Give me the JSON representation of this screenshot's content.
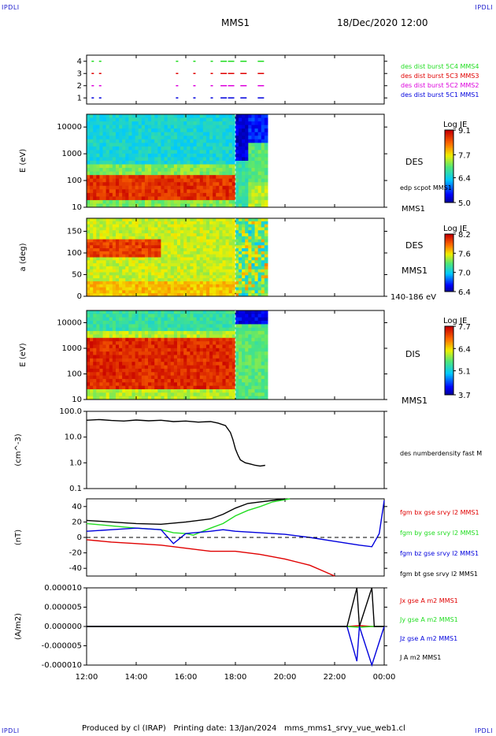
{
  "header": {
    "corner_label": "IPDLI",
    "satellite": "MMS1",
    "datetime": "18/Dec/2020 12:00"
  },
  "footer": {
    "produced_by": "Produced by cl (IRAP)",
    "printing_date": "Printing date: 13/Jan/2024",
    "script_name": "mms_mms1_srvy_vue_web1.cl"
  },
  "colors": {
    "red": "#e00000",
    "green": "#22dd22",
    "blue": "#0000dd",
    "magenta": "#dd00dd",
    "black": "#000000",
    "label_blue": "#1a1acc"
  },
  "time_axis": {
    "start_hours": 12,
    "end_hours": 24,
    "tick_labels": [
      "12:00",
      "14:00",
      "16:00",
      "18:00",
      "20:00",
      "22:00",
      "00:00"
    ],
    "dashed_marker_hours": 18
  },
  "chart_data": [
    {
      "type": "scatter",
      "panel": "burst",
      "y_ticks": [
        "4",
        "3",
        "2",
        "1"
      ],
      "ylim": [
        0.5,
        4.5
      ],
      "series": [
        {
          "name": "des dist burst 5C1 MMS1",
          "level": 1,
          "color": "#0000dd",
          "times": [
            12.2,
            12.5,
            15.6,
            16.3,
            17.0,
            17.4,
            17.7,
            18.2,
            18.9
          ]
        },
        {
          "name": "des dist burst 5C2 MMS2",
          "level": 2,
          "color": "#dd00dd",
          "times": [
            12.2,
            12.5,
            15.6,
            16.3,
            17.0,
            17.4,
            17.7,
            18.2,
            18.9
          ]
        },
        {
          "name": "des dist burst 5C3 MMS3",
          "level": 3,
          "color": "#e00000",
          "times": [
            12.2,
            12.5,
            15.6,
            16.3,
            17.0,
            17.4,
            17.7,
            18.2,
            18.9
          ]
        },
        {
          "name": "des dist burst 5C4 MMS4",
          "level": 4,
          "color": "#22dd22",
          "times": [
            12.2,
            12.5,
            15.6,
            16.3,
            17.0,
            17.4,
            17.7,
            18.2,
            18.9
          ]
        }
      ]
    },
    {
      "type": "heatmap",
      "panel": "des_energy",
      "ylabel": "E (eV)",
      "yscale": "log",
      "ylim": [
        10,
        30000
      ],
      "y_ticks": [
        "10000",
        "1000",
        "100",
        "10"
      ],
      "x_end_hours": 19.3,
      "side_labels": [
        "DES",
        "edp scpot MMS1",
        "MMS1"
      ],
      "colorbar": {
        "title": "Log JE",
        "ticks": [
          "9.1",
          "7.7",
          "6.4",
          "5.0"
        ],
        "min": 5.0,
        "max": 9.1
      }
    },
    {
      "type": "heatmap",
      "panel": "des_pitch",
      "ylabel": "a (deg)",
      "ylim": [
        0,
        180
      ],
      "y_ticks": [
        "150",
        "100",
        "50",
        "0"
      ],
      "x_end_hours": 19.3,
      "side_labels": [
        "DES",
        "MMS1",
        "140-186 eV"
      ],
      "colorbar": {
        "title": "Log JE",
        "ticks": [
          "8.2",
          "7.6",
          "7.0",
          "6.4"
        ],
        "min": 6.4,
        "max": 8.2
      }
    },
    {
      "type": "heatmap",
      "panel": "dis_energy",
      "ylabel": "E (eV)",
      "yscale": "log",
      "ylim": [
        10,
        30000
      ],
      "y_ticks": [
        "10000",
        "1000",
        "100",
        "10"
      ],
      "x_end_hours": 19.3,
      "side_labels": [
        "DIS",
        "MMS1"
      ],
      "colorbar": {
        "title": "Log JE",
        "ticks": [
          "7.7",
          "6.4",
          "5.1",
          "3.7"
        ],
        "min": 3.7,
        "max": 7.7
      }
    },
    {
      "type": "line",
      "panel": "density",
      "ylabel": "(cm^-3)",
      "yscale": "log",
      "ylim": [
        0.1,
        100
      ],
      "y_ticks": [
        "100.0",
        "10.0",
        "1.0",
        "0.1"
      ],
      "series": [
        {
          "name": "des numberdensity fast M",
          "color": "#000000",
          "x": [
            12.0,
            12.5,
            13.0,
            13.5,
            14.0,
            14.5,
            15.0,
            15.5,
            16.0,
            16.5,
            17.0,
            17.3,
            17.6,
            17.8,
            17.9,
            18.0,
            18.1,
            18.2,
            18.4,
            18.6,
            18.8,
            19.0,
            19.2
          ],
          "y": [
            45,
            48,
            44,
            42,
            46,
            43,
            45,
            40,
            42,
            38,
            40,
            35,
            28,
            15,
            8,
            3.5,
            2.0,
            1.3,
            1.0,
            0.9,
            0.8,
            0.75,
            0.8
          ]
        }
      ]
    },
    {
      "type": "line",
      "panel": "magnetic_field",
      "ylabel": "(nT)",
      "ylim": [
        -50,
        50
      ],
      "y_ticks": [
        "40",
        "20",
        "0",
        "-20",
        "-40"
      ],
      "series": [
        {
          "name": "fgm bx gse srvy l2 MMS1",
          "color": "#e00000",
          "x": [
            12.0,
            13.0,
            14.0,
            15.0,
            16.0,
            17.0,
            18.0,
            19.0,
            20.0,
            21.0,
            21.5,
            22.0
          ],
          "y": [
            -3,
            -6,
            -8,
            -10,
            -14,
            -18,
            -18,
            -22,
            -28,
            -36,
            -43,
            -50
          ]
        },
        {
          "name": "fgm by gse srvy l2 MMS1",
          "color": "#22dd22",
          "x": [
            12.0,
            13.0,
            14.0,
            15.0,
            15.5,
            16.0,
            16.3,
            17.0,
            17.5,
            18.0,
            18.5,
            19.0,
            19.5,
            20.2
          ],
          "y": [
            18,
            15,
            12,
            10,
            6,
            5,
            3,
            12,
            18,
            28,
            35,
            40,
            46,
            50
          ]
        },
        {
          "name": "fgm bz gse srvy l2 MMS1",
          "color": "#0000dd",
          "x": [
            12.0,
            13.0,
            14.0,
            15.0,
            15.5,
            16.0,
            17.0,
            17.5,
            18.0,
            19.0,
            20.0,
            21.0,
            22.0,
            23.0,
            23.5,
            23.8,
            24.0
          ],
          "y": [
            8,
            10,
            12,
            10,
            -8,
            5,
            8,
            10,
            8,
            6,
            4,
            0,
            -5,
            -10,
            -12,
            5,
            48
          ]
        },
        {
          "name": "fgm bt gse srvy l2 MMS1",
          "color": "#000000",
          "x": [
            12.0,
            13.0,
            14.0,
            15.0,
            16.0,
            17.0,
            17.5,
            18.0,
            18.5,
            19.0,
            19.5,
            20.0
          ],
          "y": [
            22,
            20,
            18,
            17,
            20,
            24,
            30,
            38,
            44,
            46,
            48,
            50
          ]
        }
      ]
    },
    {
      "type": "line",
      "panel": "current_density",
      "ylabel": "(A/m2)",
      "ylim": [
        -1e-05,
        1e-05
      ],
      "y_ticks": [
        "0.000010",
        "0.000005",
        "0.000000",
        "-0.000005",
        "-0.000010"
      ],
      "series": [
        {
          "name": "Jx gse A m2 MMS1",
          "color": "#e00000",
          "x": [
            12.0,
            22.5,
            23.0,
            23.5,
            24.0
          ],
          "y": [
            0,
            0,
            2e-07,
            0,
            0
          ]
        },
        {
          "name": "Jy gse A m2 MMS1",
          "color": "#22dd22",
          "x": [
            12.0,
            22.5,
            23.0,
            23.5,
            24.0
          ],
          "y": [
            0,
            0,
            -2e-07,
            0,
            0
          ]
        },
        {
          "name": "Jz gse A m2 MMS1",
          "color": "#0000dd",
          "x": [
            12.0,
            22.5,
            22.9,
            23.0,
            23.5,
            24.0
          ],
          "y": [
            0,
            0,
            -9e-06,
            0,
            -1e-05,
            0
          ]
        },
        {
          "name": "J A m2 MMS1",
          "color": "#000000",
          "x": [
            12.0,
            22.5,
            22.9,
            23.0,
            23.5,
            23.6,
            24.0
          ],
          "y": [
            0,
            0,
            1e-05,
            0,
            1e-05,
            0,
            0
          ]
        }
      ]
    }
  ]
}
